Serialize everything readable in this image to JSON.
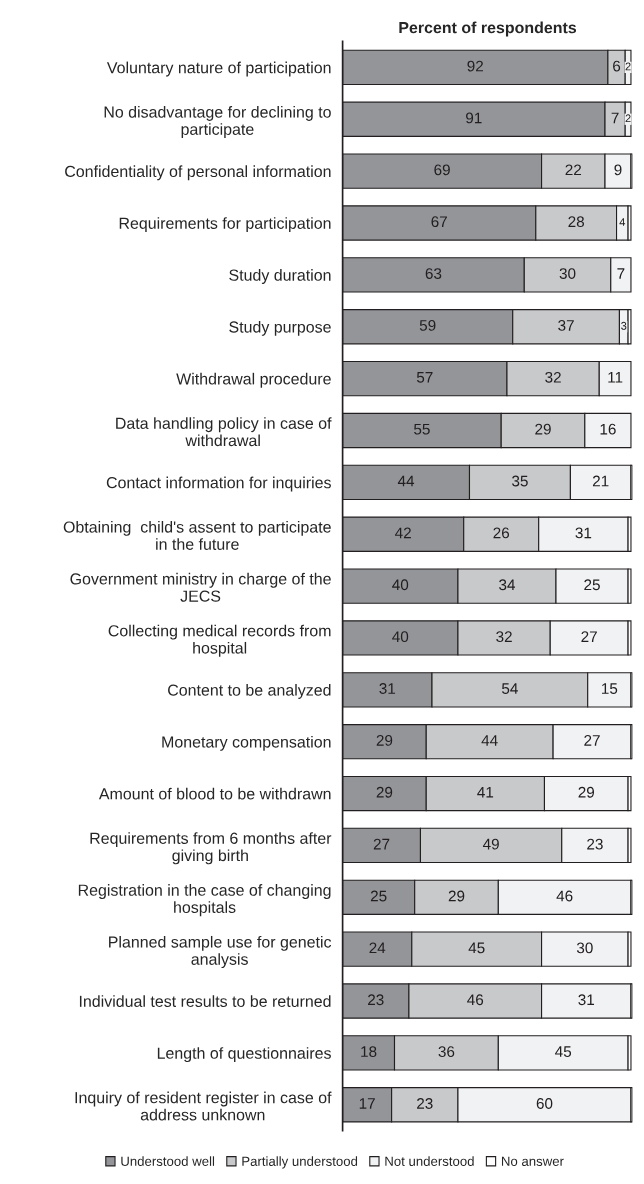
{
  "chart_data": {
    "type": "bar",
    "orientation": "horizontal",
    "stacked": true,
    "xlabel": "Percent of respondents",
    "tick_labels": "y",
    "grid": false,
    "legend": "bottom",
    "xlim": [
      0,
      100.5
    ],
    "categories": [
      "Voluntary nature of participation",
      "No disadvantage for declining to\nparticipate",
      "Confidentiality of personal information",
      "Requirements for participation",
      "Study duration",
      "Study purpose",
      "Withdrawal procedure",
      "Data handling policy in case of\nwithdrawal",
      "Contact information for inquiries",
      "Obtaining  child's assent to participate\nin the future",
      "Government ministry in charge of the\nJECS",
      "Collecting medical records from\nhospital",
      "Content to be analyzed",
      "Monetary compensation",
      "Amount of blood to be withdrawn",
      "Requirements from 6 months after\ngiving birth",
      "Registration in the case of changing\nhospitals",
      "Planned sample use for genetic\nanalysis",
      "Individual test results to be returned",
      "Length of questionnaires",
      "Inquiry of resident register in case of\naddress unknown"
    ],
    "series": [
      {
        "name": "Understood well",
        "color": "#939598",
        "values": [
          92,
          91,
          69,
          67,
          63,
          59,
          57,
          55,
          44,
          42,
          40,
          40,
          31,
          29,
          29,
          27,
          25,
          24,
          23,
          18,
          17
        ],
        "value_labels": [
          "92",
          "91",
          "69",
          "67",
          "63",
          "59",
          "57",
          "55",
          "44",
          "42",
          "40",
          "40",
          "31",
          "29",
          "29",
          "27",
          "25",
          "24",
          "23",
          "18",
          "17"
        ]
      },
      {
        "name": "Partially understood",
        "color": "#c8c9cb",
        "values": [
          6,
          7,
          22,
          28,
          30,
          37,
          32,
          29,
          35,
          26,
          34,
          32,
          54,
          44,
          41,
          49,
          29,
          45,
          46,
          36,
          23
        ],
        "value_labels": [
          "6",
          "7",
          "22",
          "28",
          "30",
          "37",
          "32",
          "29",
          "35",
          "26",
          "34",
          "32",
          "54",
          "44",
          "41",
          "49",
          "29",
          "45",
          "46",
          "36",
          "23"
        ]
      },
      {
        "name": "Not understood",
        "color": "#f1f2f3",
        "values": [
          2,
          2,
          9,
          4,
          7,
          3,
          11,
          16,
          21,
          31,
          25,
          27,
          15,
          27,
          29,
          23,
          46,
          30,
          31,
          45,
          60
        ],
        "value_labels": [
          "2",
          "2",
          "9",
          "4",
          "7",
          "3",
          "11",
          "16",
          "21",
          "31",
          "25",
          "27",
          "15",
          "27",
          "29",
          "23",
          "46",
          "30",
          "31",
          "45",
          "60"
        ]
      },
      {
        "name": "No answer",
        "color": "#ffffff",
        "values": [
          null,
          null,
          0.5,
          1,
          0,
          1,
          0,
          0,
          0.5,
          1,
          1,
          1,
          0.5,
          0.5,
          1,
          1,
          0.5,
          1,
          0.5,
          1,
          0.5
        ]
      }
    ]
  }
}
